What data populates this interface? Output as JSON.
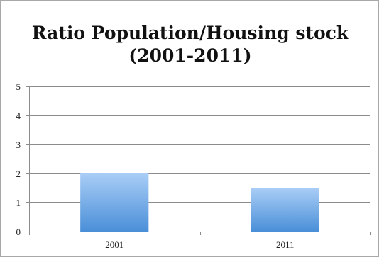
{
  "chart_data": {
    "type": "bar",
    "title": "Ratio Population/Housing stock",
    "subtitle": "(2001-2011)",
    "categories": [
      "2001",
      "2011"
    ],
    "values": [
      2.0,
      1.5
    ],
    "xlabel": "",
    "ylabel": "",
    "ylim": [
      0,
      5
    ],
    "yticks": [
      "0",
      "1",
      "2",
      "3",
      "4",
      "5"
    ],
    "grid": true,
    "legend": "none",
    "bar_color_top": "#a9cdf6",
    "bar_color_bottom": "#4a8fd8"
  }
}
